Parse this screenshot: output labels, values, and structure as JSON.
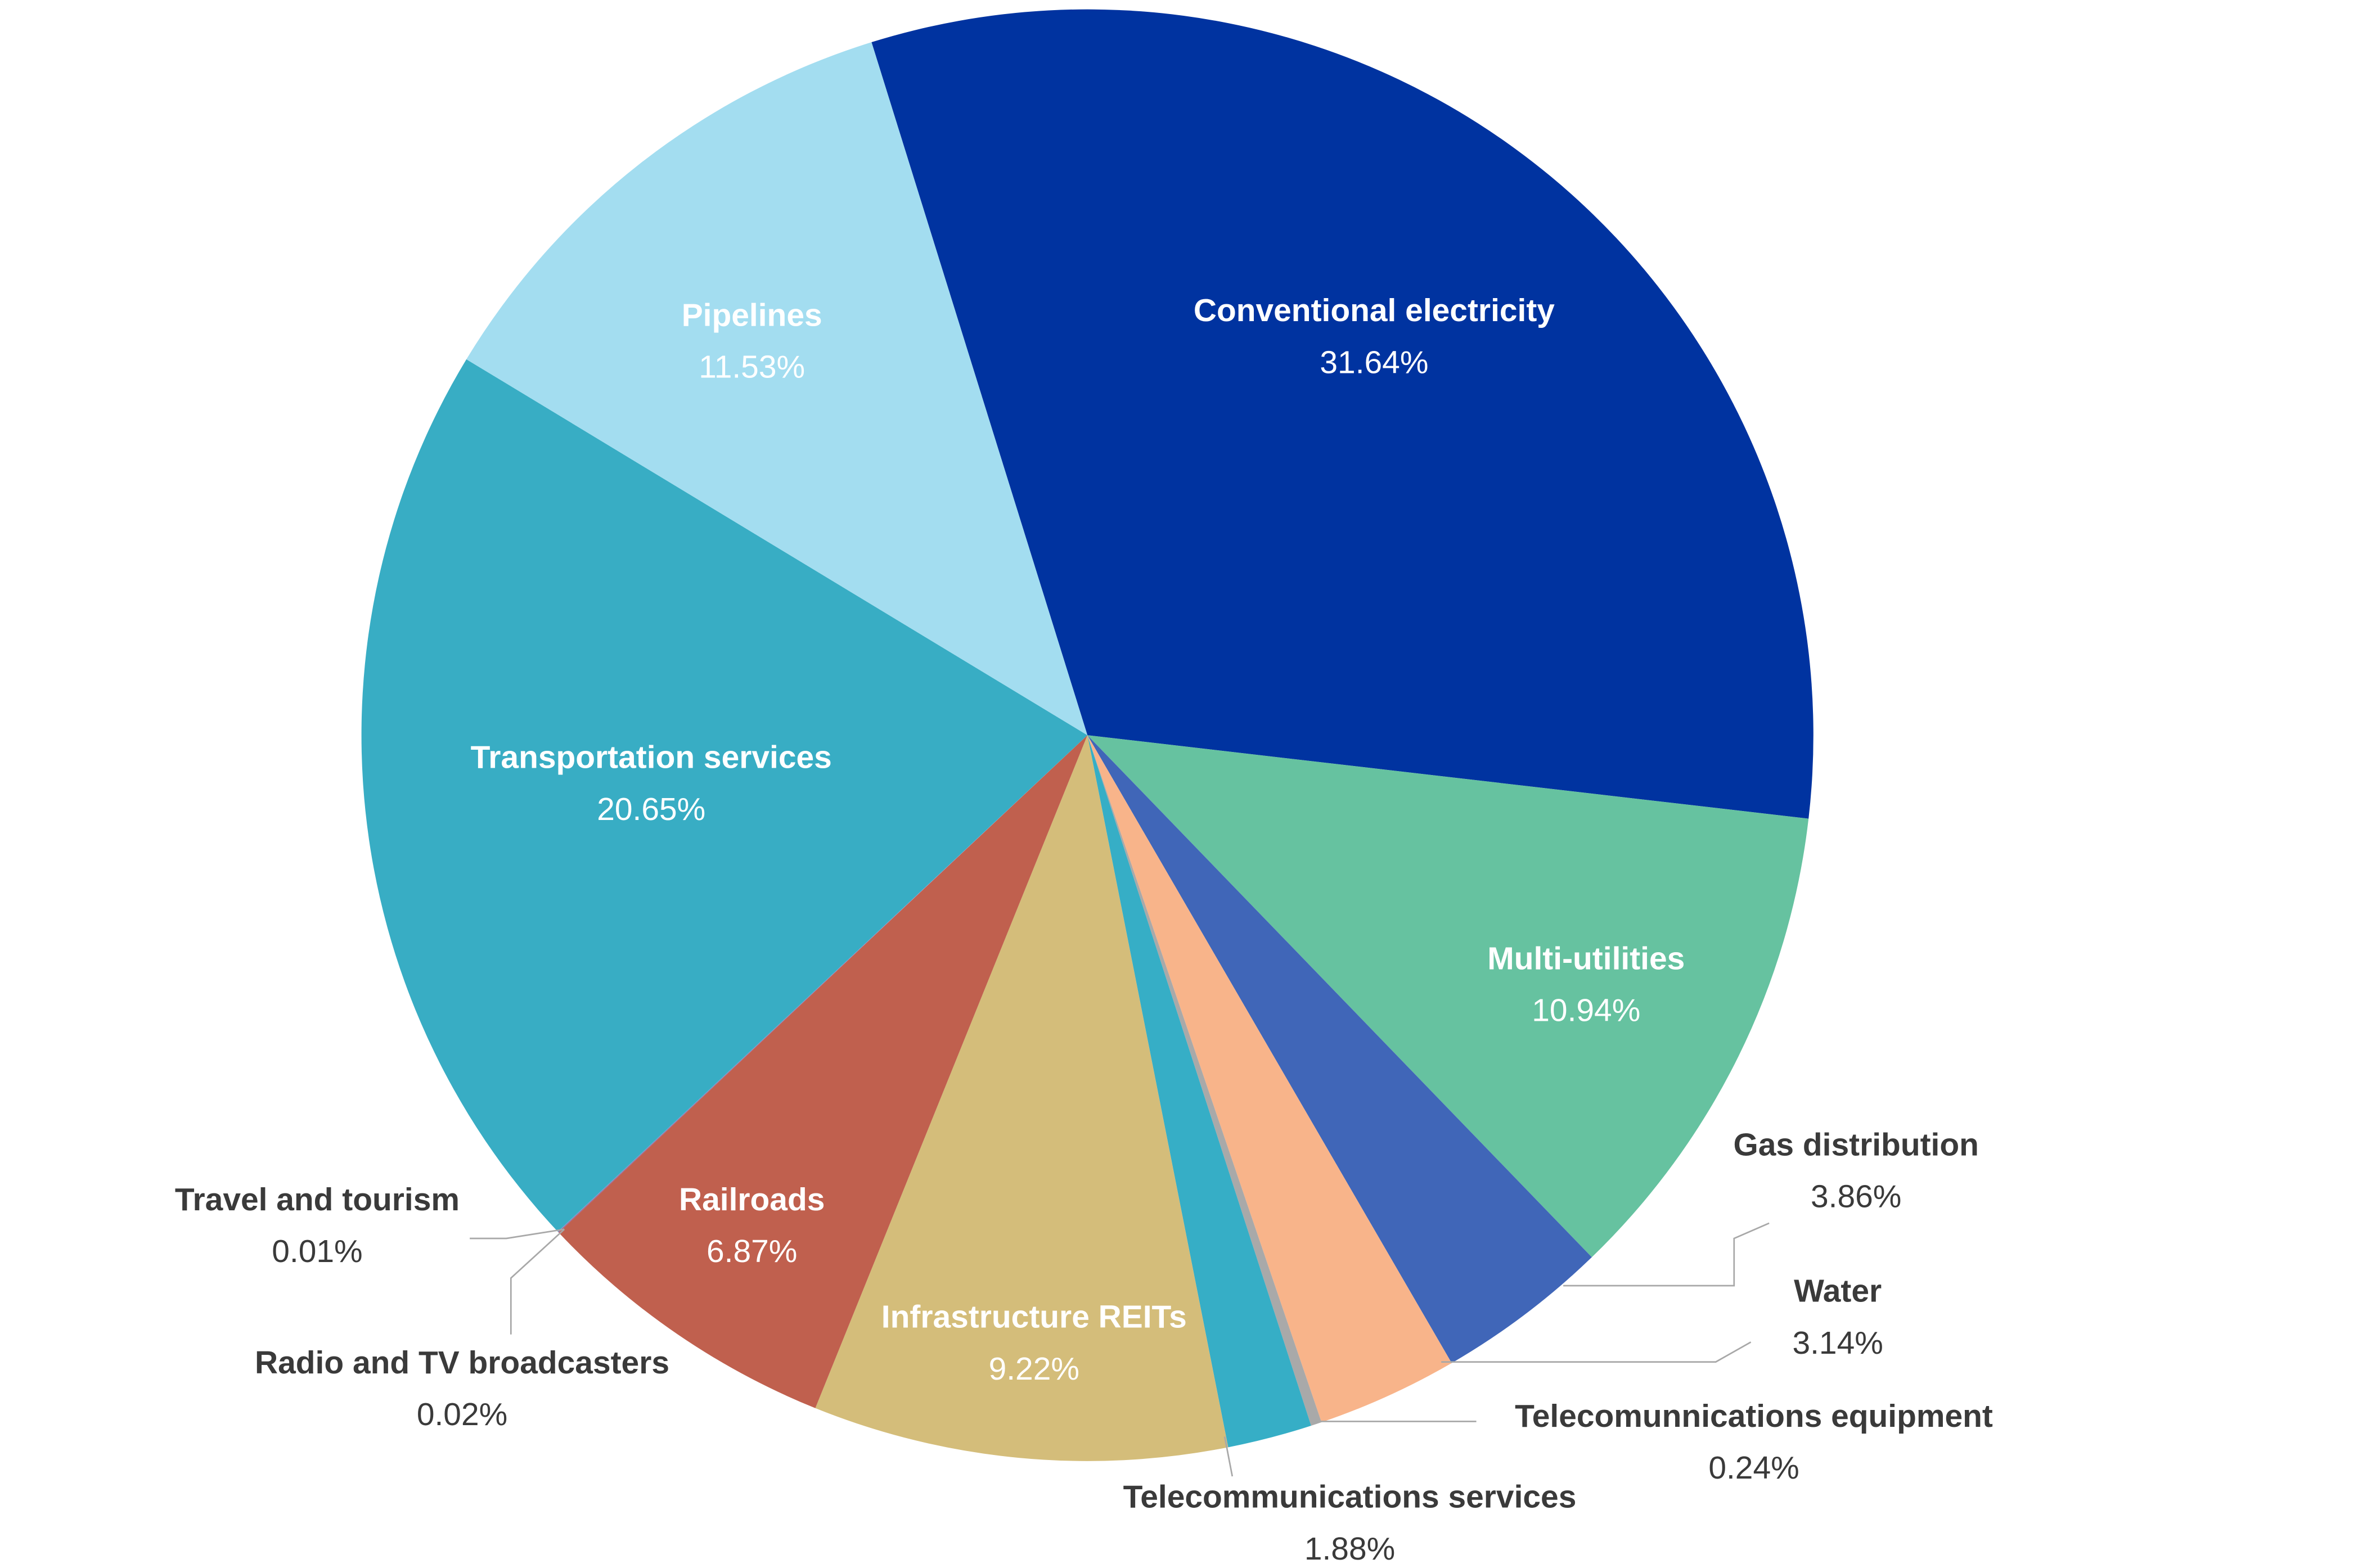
{
  "chart_data": {
    "type": "pie",
    "categories": [
      "Conventional electricity",
      "Multi-utilities",
      "Gas distribution",
      "Water",
      "Telecomunnications equipment",
      "Telecommunications services",
      "Infrastructure REITs",
      "Railroads",
      "Radio and TV broadcasters",
      "Travel and tourism",
      "Transportation services",
      "Pipelines"
    ],
    "values": [
      31.64,
      10.94,
      3.86,
      3.14,
      0.24,
      1.88,
      9.22,
      6.87,
      0.02,
      0.01,
      20.65,
      11.53
    ],
    "value_labels": [
      "31.64%",
      "10.94%",
      "3.86%",
      "3.14%",
      "0.24%",
      "1.88%",
      "9.22%",
      "6.87%",
      "0.02%",
      "0.01%",
      "20.65%",
      "11.53%"
    ],
    "colors": [
      "#0033a0",
      "#66c2a0",
      "#4066b8",
      "#f8b48a",
      "#a9a9a9",
      "#36aec6",
      "#d4bd7a",
      "#c0604e",
      "#9a6a9a",
      "#7a9acb",
      "#38adc4",
      "#a3ddf0"
    ]
  }
}
